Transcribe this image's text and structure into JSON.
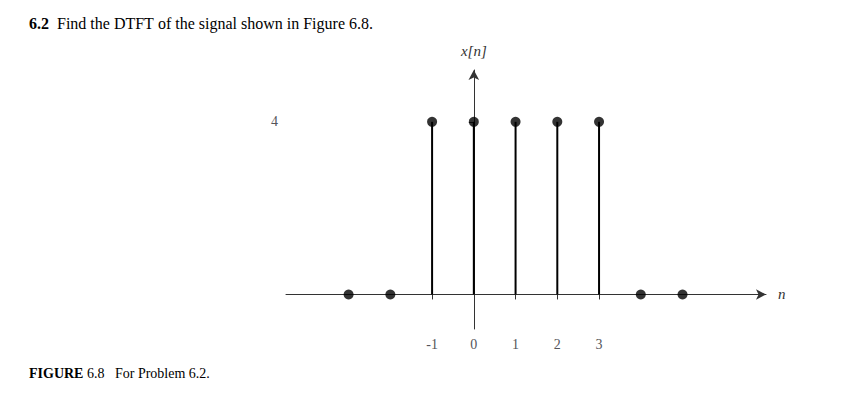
{
  "chart_data": {
    "type": "stem",
    "title": "6.2  Find the DTFT of the signal shown in Figure 6.8.",
    "annotations": [
      "FIGURE 6.8   For Problem 6.2."
    ],
    "xlabel": "n",
    "ylabel": "x[n]",
    "x": [
      -3,
      -2,
      -1,
      0,
      1,
      2,
      3,
      4,
      5
    ],
    "values": [
      0,
      0,
      4,
      4,
      4,
      4,
      4,
      0,
      0
    ],
    "color": "#000000",
    "xlim": [
      -4.5,
      7.0
    ],
    "xticks": [
      -1,
      0,
      1,
      2,
      3
    ],
    "ylim": [
      -0.8,
      5.2
    ],
    "yticks": [
      4
    ],
    "grid": false,
    "marker": "circle"
  }
}
